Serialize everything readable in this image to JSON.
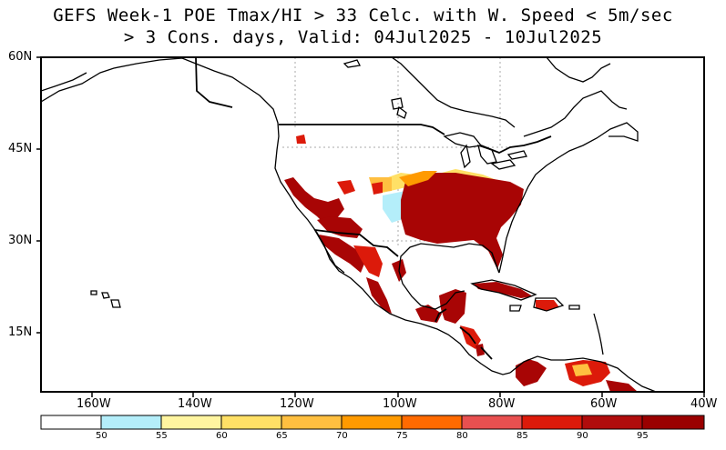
{
  "title_line1": "GEFS Week-1 POE Tmax/HI > 33 Celc. with W. Speed < 5m/sec",
  "title_line2": "> 3 Cons. days, Valid: 04Jul2025 - 10Jul2025",
  "lat_labels": [
    "60N",
    "45N",
    "30N",
    "15N"
  ],
  "lon_labels": [
    "160W",
    "140W",
    "120W",
    "100W",
    "80W",
    "60W",
    "40W"
  ],
  "colorbar": {
    "labels": [
      "50",
      "55",
      "60",
      "65",
      "70",
      "75",
      "80",
      "85",
      "90",
      "95"
    ],
    "colors": [
      "#ffffff",
      "#b4eefa",
      "#fff5a0",
      "#ffe066",
      "#ffbf40",
      "#ff9a00",
      "#ff6a00",
      "#e85050",
      "#dc1a0a",
      "#b00c0c",
      "#9a0000"
    ]
  },
  "map_colors": {
    "ocean": "#ffffff",
    "land": "#ffffff",
    "highest_prob": "#a80505",
    "high_prob": "#dc1a0a",
    "mid_prob": "#ff9a00",
    "low_prob": "#ffe066",
    "lowest_prob": "#b4eefa"
  }
}
